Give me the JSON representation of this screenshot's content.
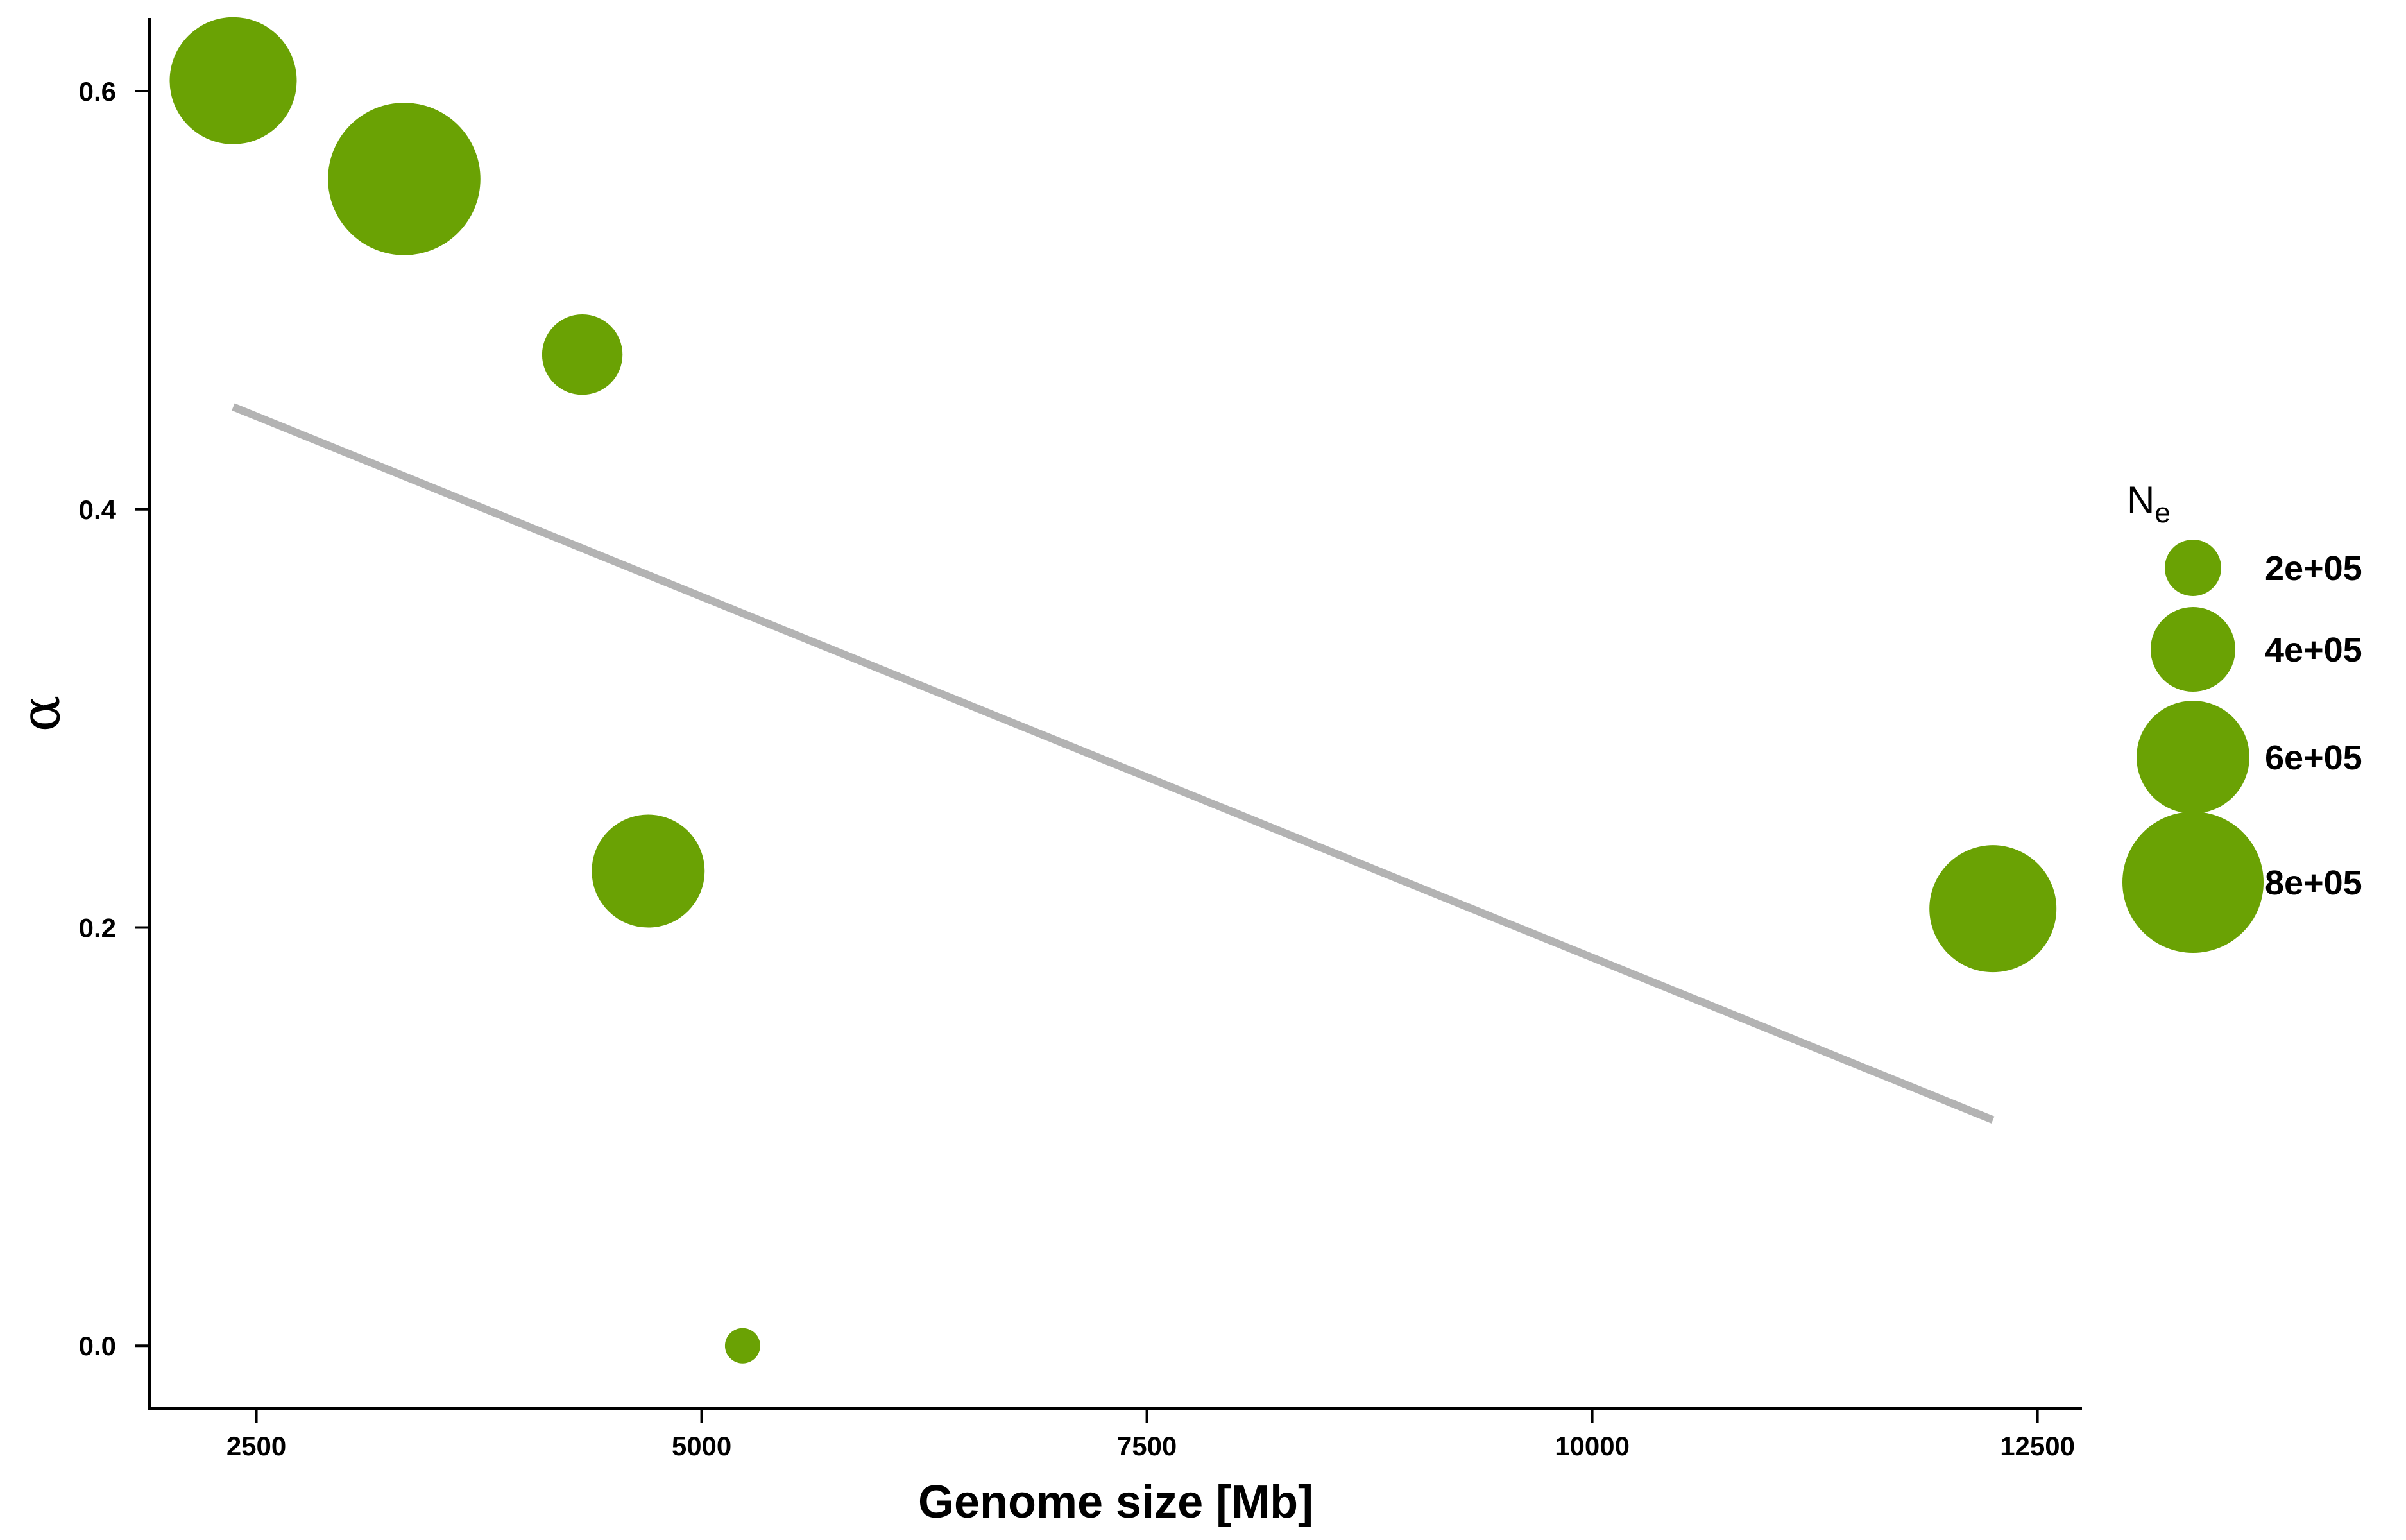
{
  "chart_data": {
    "type": "scatter",
    "title": "",
    "xlabel": "Genome size [Mb]",
    "ylabel": "α",
    "xlim": [
      1900,
      12750
    ],
    "ylim": [
      -0.03,
      0.635
    ],
    "x_ticks": [
      2500,
      5000,
      7500,
      10000,
      12500
    ],
    "x_tick_labels": [
      "2500",
      "5000",
      "7500",
      "10000",
      "12500"
    ],
    "y_ticks": [
      0.0,
      0.2,
      0.4,
      0.6
    ],
    "y_tick_labels": [
      "0.0",
      "0.2",
      "0.4",
      "0.6"
    ],
    "grid": false,
    "point_color": "#6aa204",
    "trend_color": "#b3b3b3",
    "points": [
      {
        "x": 2370,
        "y": 0.605,
        "Ne": 700000
      },
      {
        "x": 3330,
        "y": 0.558,
        "Ne": 880000
      },
      {
        "x": 4330,
        "y": 0.474,
        "Ne": 370000
      },
      {
        "x": 4700,
        "y": 0.227,
        "Ne": 600000
      },
      {
        "x": 5230,
        "y": 0.0,
        "Ne": 50000
      },
      {
        "x": 12250,
        "y": 0.209,
        "Ne": 700000
      }
    ],
    "trend_line": {
      "x": [
        2370,
        12250
      ],
      "y": [
        0.449,
        0.108
      ]
    },
    "legend": {
      "title_main": "N",
      "title_sub": "e",
      "placement": "right",
      "entries": [
        {
          "label": "2e+05",
          "value": 200000
        },
        {
          "label": "4e+05",
          "value": 400000
        },
        {
          "label": "6e+05",
          "value": 600000
        },
        {
          "label": "8e+05",
          "value": 800000
        }
      ]
    }
  }
}
